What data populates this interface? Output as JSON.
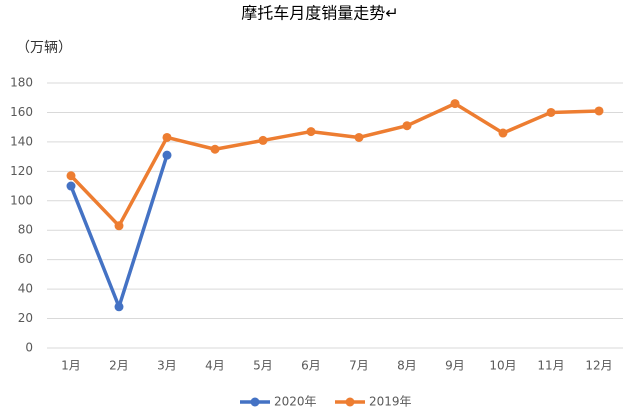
{
  "chart_data": {
    "type": "line",
    "title": "摩托车月度销量走势↵",
    "y_label": "（万辆）",
    "categories": [
      "1月",
      "2月",
      "3月",
      "4月",
      "5月",
      "6月",
      "7月",
      "8月",
      "9月",
      "10月",
      "11月",
      "12月"
    ],
    "series": [
      {
        "name": "2020年",
        "color": "#4472c4",
        "values": [
          110,
          28,
          131,
          null,
          null,
          null,
          null,
          null,
          null,
          null,
          null,
          null
        ]
      },
      {
        "name": "2019年",
        "color": "#ed7d31",
        "values": [
          117,
          83,
          143,
          135,
          141,
          147,
          143,
          151,
          166,
          146,
          160,
          161
        ]
      }
    ],
    "ylim": [
      0,
      180
    ],
    "yticks": [
      0,
      20,
      40,
      60,
      80,
      100,
      120,
      140,
      160,
      180
    ],
    "grid": true,
    "legend": "bottom"
  }
}
